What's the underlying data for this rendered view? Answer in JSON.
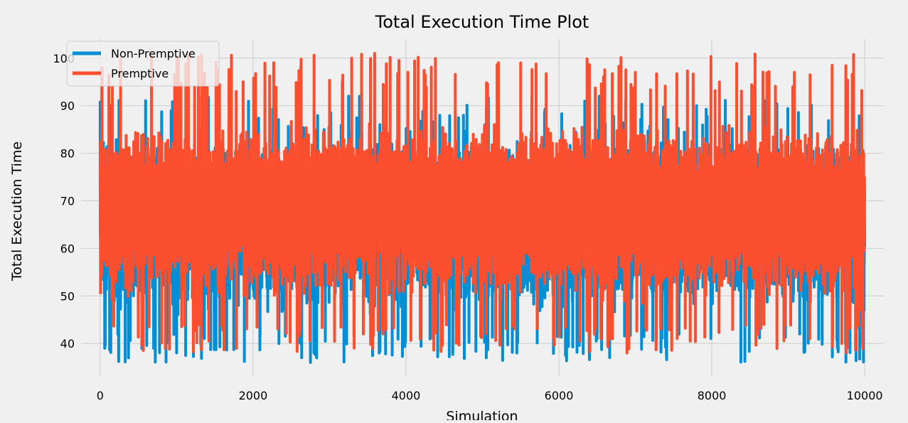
{
  "chart_data": {
    "type": "line",
    "title": "Total Execution Time Plot",
    "xlabel": "Simulation",
    "ylabel": "Total Execution Time",
    "xlim": [
      -250,
      10250
    ],
    "ylim": [
      33,
      104
    ],
    "xticks": [
      0,
      2000,
      4000,
      6000,
      8000,
      10000
    ],
    "yticks": [
      40,
      50,
      60,
      70,
      80,
      90,
      100
    ],
    "grid": true,
    "legend_position": "top-left",
    "n_points": 10000,
    "series": [
      {
        "name": "Non-Premptive",
        "color": "#008fd5",
        "mean": 66,
        "typical_range": [
          45,
          85
        ],
        "min": 36,
        "max": 92,
        "highlights": [
          {
            "x": 0,
            "y": 91
          },
          {
            "x": 60,
            "y": 39
          },
          {
            "x": 700,
            "y": 39
          },
          {
            "x": 1000,
            "y": 38
          },
          {
            "x": 2750,
            "y": 36
          },
          {
            "x": 3250,
            "y": 92
          },
          {
            "x": 3650,
            "y": 38
          },
          {
            "x": 5050,
            "y": 37
          },
          {
            "x": 5450,
            "y": 38
          },
          {
            "x": 6500,
            "y": 41
          },
          {
            "x": 7800,
            "y": 90
          },
          {
            "x": 9150,
            "y": 42
          },
          {
            "x": 9750,
            "y": 40
          },
          {
            "x": 9930,
            "y": 43
          }
        ]
      },
      {
        "name": "Premptive",
        "color": "#fc4f30",
        "mean": 68,
        "typical_range": [
          48,
          88
        ],
        "min": 38,
        "max": 101,
        "highlights": [
          {
            "x": 160,
            "y": 94
          },
          {
            "x": 1000,
            "y": 95
          },
          {
            "x": 3290,
            "y": 100
          },
          {
            "x": 3590,
            "y": 101
          },
          {
            "x": 3700,
            "y": 42
          },
          {
            "x": 5500,
            "y": 99
          },
          {
            "x": 6700,
            "y": 41
          },
          {
            "x": 7000,
            "y": 97
          },
          {
            "x": 8100,
            "y": 95
          },
          {
            "x": 9080,
            "y": 97
          },
          {
            "x": 9700,
            "y": 40
          },
          {
            "x": 9760,
            "y": 38
          },
          {
            "x": 9960,
            "y": 47
          }
        ]
      }
    ]
  }
}
